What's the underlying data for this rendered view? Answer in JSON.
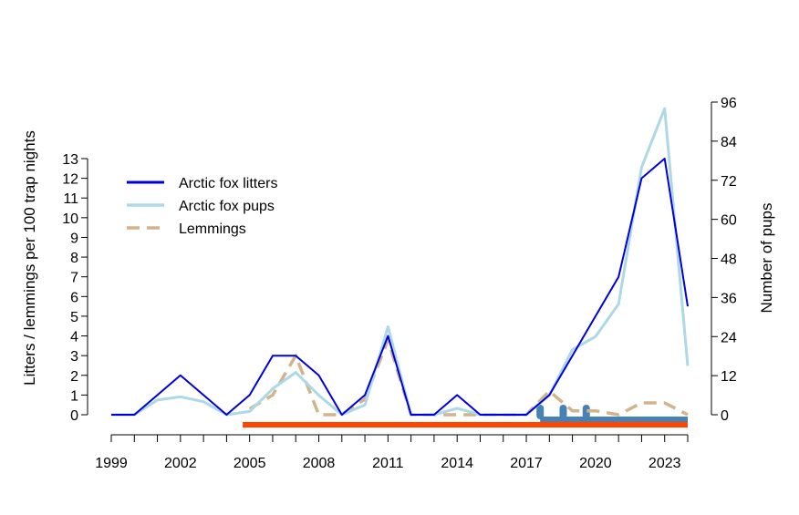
{
  "chart_data": {
    "type": "line",
    "title": "",
    "xlabel": "",
    "ylabel_left": "Litters / lemmings per 100 trap nights",
    "ylabel_right": "Number of pups",
    "x": [
      1999,
      2000,
      2001,
      2002,
      2003,
      2004,
      2005,
      2006,
      2007,
      2008,
      2009,
      2010,
      2011,
      2012,
      2013,
      2014,
      2015,
      2016,
      2017,
      2018,
      2019,
      2020,
      2021,
      2022,
      2023,
      2024
    ],
    "xlim": [
      1999,
      2024
    ],
    "x_tick_labels": [
      "1999",
      "2002",
      "2005",
      "2008",
      "2011",
      "2014",
      "2017",
      "2020",
      "2023"
    ],
    "ylim_left": [
      0,
      13
    ],
    "ylim_right": [
      0,
      96
    ],
    "left_ticks": [
      "0",
      "1",
      "2",
      "3",
      "4",
      "5",
      "6",
      "7",
      "8",
      "9",
      "10",
      "11",
      "12",
      "13"
    ],
    "right_ticks": [
      "0",
      "12",
      "24",
      "36",
      "48",
      "60",
      "72",
      "84",
      "96"
    ],
    "series": [
      {
        "name": "Arctic fox litters",
        "axis": "left",
        "color": "#0000dd",
        "style": "solid",
        "values": [
          0,
          0,
          1,
          2,
          1,
          0,
          1,
          3,
          3,
          2,
          0,
          1,
          4,
          0,
          0,
          1,
          0,
          0,
          0,
          1,
          3,
          5,
          7,
          12,
          13,
          5.5
        ]
      },
      {
        "name": "Arctic fox pups",
        "axis": "right",
        "color": "#add8e6",
        "style": "solid",
        "values": [
          0,
          0,
          4.5,
          5.5,
          4,
          0,
          1,
          8,
          13,
          6,
          0,
          3,
          27,
          0,
          0,
          2,
          0,
          0,
          0,
          6,
          20,
          24,
          34,
          76,
          94,
          15
        ]
      },
      {
        "name": "Lemmings",
        "axis": "left",
        "color": "#d2b48c",
        "style": "dashed",
        "values": [
          null,
          null,
          null,
          null,
          null,
          null,
          0.3,
          1,
          3,
          0,
          0,
          0.8,
          3.8,
          0,
          0,
          0,
          0,
          0,
          0,
          1.2,
          0.2,
          0.2,
          0,
          0.6,
          0.6,
          0
        ]
      }
    ],
    "monitoring_periods": [
      {
        "name": "period-1",
        "color": "#ff4500",
        "start": 2004.7,
        "end": 2024
      }
    ],
    "monitoring_bar": {
      "name": "period-2",
      "color": "#4682b4",
      "start": 2017.6,
      "end": 2024
    },
    "event_markers": {
      "color": "#4682b4",
      "x": [
        2017.6,
        2018.6,
        2019.6
      ]
    }
  }
}
